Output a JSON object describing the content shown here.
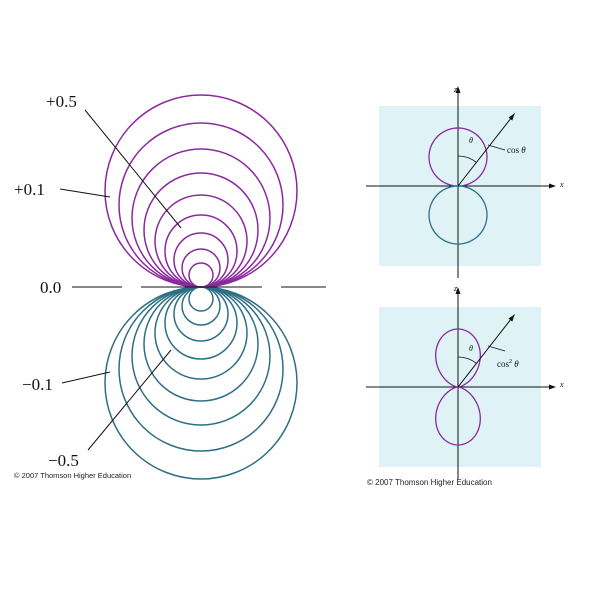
{
  "contour_plot": {
    "labels": {
      "plus_half": "+0.5",
      "plus_tenth": "+0.1",
      "zero": "0.0",
      "minus_tenth": "−0.1",
      "minus_half": "−0.5"
    },
    "colors": {
      "positive": "#8a2a9e",
      "negative": "#2e6f86"
    },
    "copyright": "© 2007 Thomson Higher Education"
  },
  "polar_plots": {
    "background_color": "#dff3f6",
    "axis_labels": {
      "z": "z",
      "x": "x"
    },
    "top": {
      "theta_label": "θ",
      "curve_label_fn": "cos",
      "curve_label_power": "",
      "curve_label_var": "θ"
    },
    "bottom": {
      "theta_label": "θ",
      "curve_label_fn": "cos",
      "curve_label_power": "2",
      "curve_label_var": "θ"
    },
    "copyright": "© 2007 Thomson Higher Education"
  }
}
